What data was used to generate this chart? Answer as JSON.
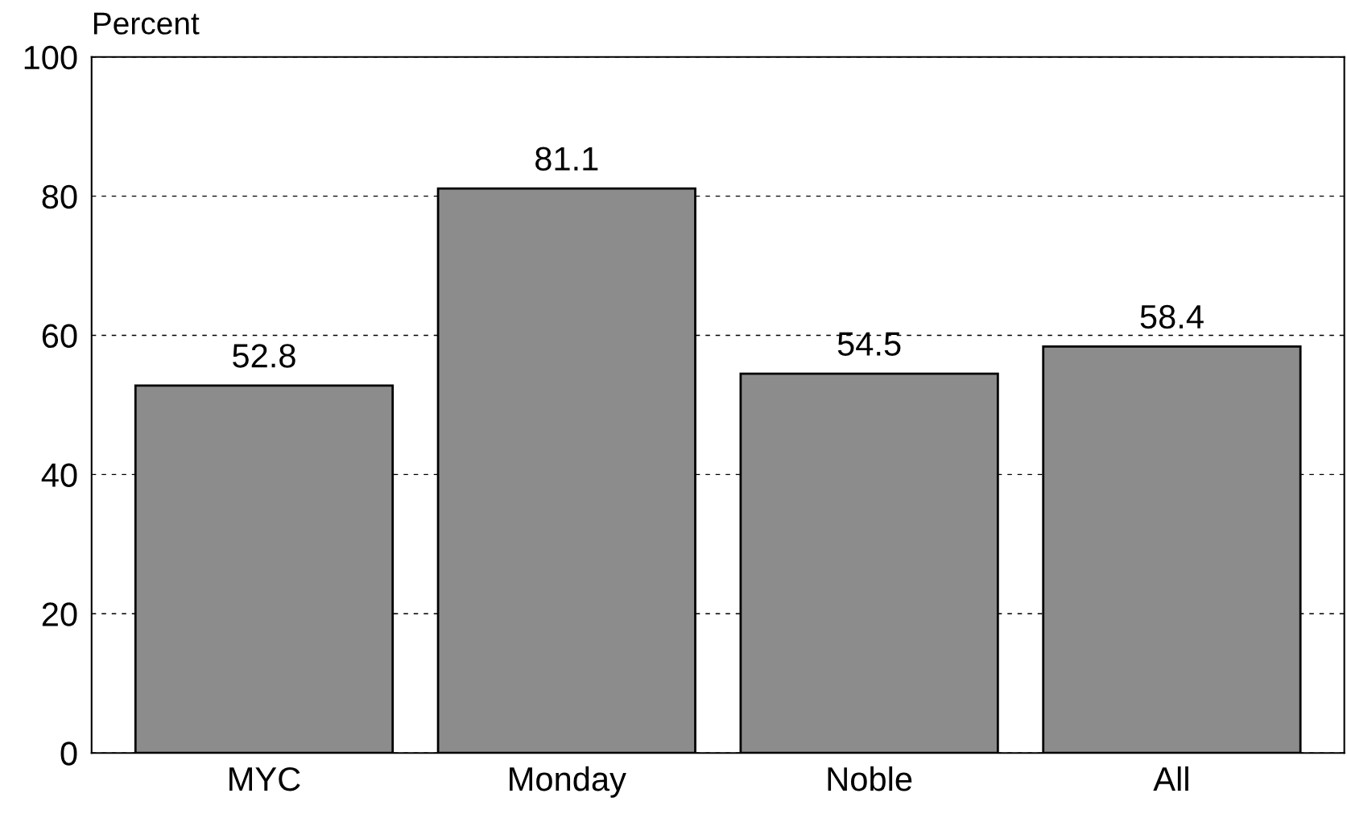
{
  "chart_data": {
    "type": "bar",
    "ylabel": "Percent",
    "categories": [
      "MYC",
      "Monday",
      "Noble",
      "All"
    ],
    "values": [
      52.8,
      81.1,
      54.5,
      58.4
    ],
    "color": "#8c8c8c",
    "data_labels": true,
    "ylim": [
      0,
      100
    ],
    "yticks": [
      0,
      20,
      40,
      60,
      80,
      100
    ],
    "grid": "y",
    "legend": false
  }
}
